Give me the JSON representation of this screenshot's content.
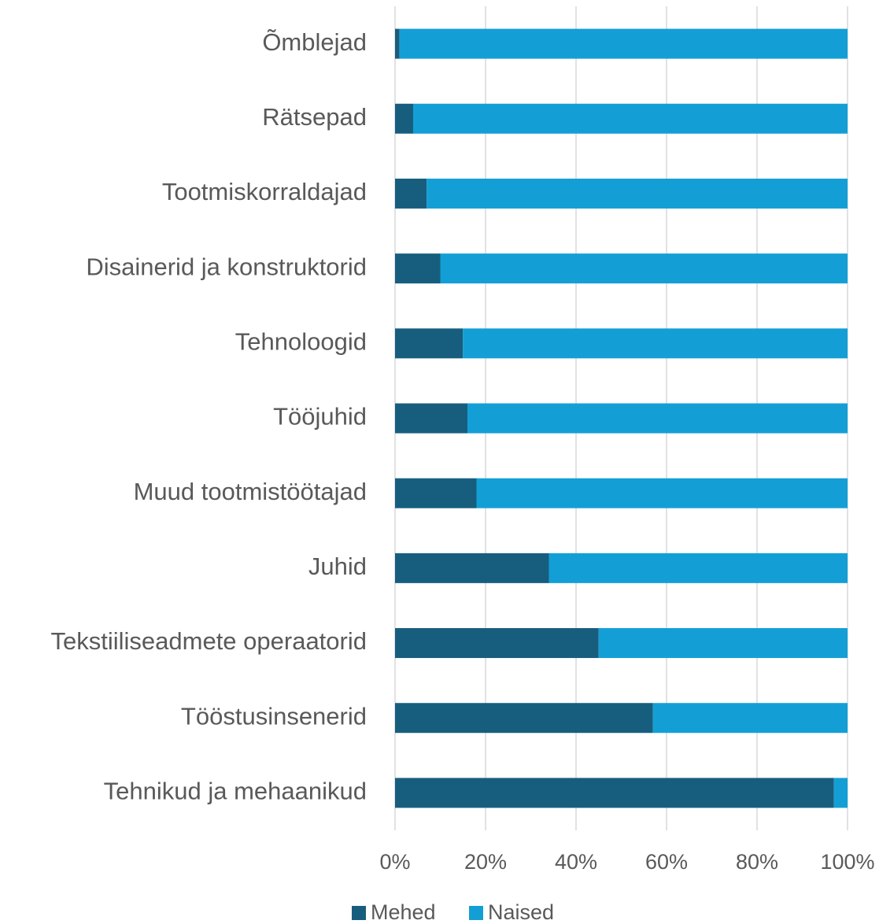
{
  "chart_data": {
    "type": "stacked_barh",
    "categories": [
      "Õmblejad",
      "Rätsepad",
      "Tootmiskorraldajad",
      "Disainerid ja konstruktorid",
      "Tehnoloogid",
      "Tööjuhid",
      "Muud tootmistöötajad",
      "Juhid",
      "Tekstiiliseadmete operaatorid",
      "Tööstusinsenerid",
      "Tehnikud ja mehaanikud"
    ],
    "series": [
      {
        "name": "Mehed",
        "color": "#175e7e",
        "values": [
          1,
          4,
          7,
          10,
          15,
          16,
          18,
          34,
          45,
          57,
          97
        ]
      },
      {
        "name": "Naised",
        "color": "#139fd6",
        "values": [
          99,
          96,
          93,
          90,
          85,
          84,
          82,
          66,
          55,
          43,
          3
        ]
      }
    ],
    "xlim": [
      0,
      100
    ],
    "xticks": [
      {
        "value": 0,
        "label": "0%"
      },
      {
        "value": 20,
        "label": "20%"
      },
      {
        "value": 40,
        "label": "40%"
      },
      {
        "value": 60,
        "label": "60%"
      },
      {
        "value": 80,
        "label": "80%"
      },
      {
        "value": 100,
        "label": "100%"
      }
    ],
    "grid": true,
    "legend": "bottom"
  }
}
